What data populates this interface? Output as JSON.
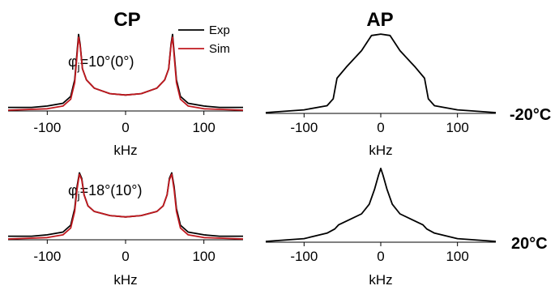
{
  "column_titles": [
    "CP",
    "AP"
  ],
  "row_labels": [
    "-20°C",
    "20°C"
  ],
  "legend": [
    {
      "label": "Exp",
      "color": "#000000"
    },
    {
      "label": "Sim",
      "color": "#c0191f"
    }
  ],
  "annotations": [
    {
      "prefix": "φ",
      "sub": "j",
      "text": "=10°(0°)"
    },
    {
      "prefix": "φ",
      "sub": "j",
      "text": "=18°(10°)"
    }
  ],
  "chart_data": [
    {
      "type": "line",
      "panel": "CP, -20°C",
      "xlabel": "kHz",
      "xlim": [
        -150,
        150
      ],
      "xticks": [
        "-100",
        "0",
        "100"
      ],
      "series": [
        {
          "name": "Exp",
          "color": "#000000",
          "points": [
            [
              -150,
              0.02
            ],
            [
              -120,
              0.02
            ],
            [
              -100,
              0.03
            ],
            [
              -80,
              0.05
            ],
            [
              -70,
              0.1
            ],
            [
              -65,
              0.22
            ],
            [
              -62,
              0.42
            ],
            [
              -60,
              0.55
            ],
            [
              -58,
              0.48
            ],
            [
              -55,
              0.3
            ],
            [
              -50,
              0.22
            ],
            [
              -40,
              0.16
            ],
            [
              -20,
              0.12
            ],
            [
              0,
              0.11
            ],
            [
              20,
              0.12
            ],
            [
              40,
              0.16
            ],
            [
              50,
              0.22
            ],
            [
              55,
              0.3
            ],
            [
              58,
              0.48
            ],
            [
              60,
              0.55
            ],
            [
              62,
              0.42
            ],
            [
              65,
              0.22
            ],
            [
              70,
              0.1
            ],
            [
              80,
              0.05
            ],
            [
              100,
              0.03
            ],
            [
              120,
              0.02
            ],
            [
              150,
              0.02
            ]
          ]
        },
        {
          "name": "Sim",
          "color": "#c0191f",
          "points": [
            [
              -150,
              0.0
            ],
            [
              -100,
              0.01
            ],
            [
              -80,
              0.03
            ],
            [
              -70,
              0.08
            ],
            [
              -65,
              0.2
            ],
            [
              -62,
              0.4
            ],
            [
              -60,
              0.53
            ],
            [
              -58,
              0.47
            ],
            [
              -55,
              0.3
            ],
            [
              -50,
              0.22
            ],
            [
              -40,
              0.16
            ],
            [
              -20,
              0.12
            ],
            [
              0,
              0.11
            ],
            [
              20,
              0.12
            ],
            [
              40,
              0.16
            ],
            [
              50,
              0.22
            ],
            [
              55,
              0.3
            ],
            [
              58,
              0.47
            ],
            [
              60,
              0.53
            ],
            [
              62,
              0.4
            ],
            [
              65,
              0.2
            ],
            [
              70,
              0.08
            ],
            [
              80,
              0.03
            ],
            [
              100,
              0.01
            ],
            [
              150,
              0.0
            ]
          ]
        }
      ]
    },
    {
      "type": "line",
      "panel": "AP, -20°C",
      "xlabel": "kHz",
      "xlim": [
        -150,
        150
      ],
      "xticks": [
        "-100",
        "0",
        "100"
      ],
      "series": [
        {
          "name": "",
          "color": "#000000",
          "points": [
            [
              -150,
              0.0
            ],
            [
              -100,
              0.02
            ],
            [
              -70,
              0.05
            ],
            [
              -62,
              0.1
            ],
            [
              -57,
              0.25
            ],
            [
              -45,
              0.33
            ],
            [
              -25,
              0.45
            ],
            [
              -12,
              0.56
            ],
            [
              0,
              0.57
            ],
            [
              12,
              0.56
            ],
            [
              25,
              0.45
            ],
            [
              45,
              0.33
            ],
            [
              57,
              0.25
            ],
            [
              62,
              0.1
            ],
            [
              70,
              0.05
            ],
            [
              100,
              0.02
            ],
            [
              150,
              0.0
            ]
          ]
        }
      ]
    },
    {
      "type": "line",
      "panel": "CP, 20°C",
      "xlabel": "kHz",
      "xlim": [
        -150,
        150
      ],
      "xticks": [
        "-100",
        "0",
        "100"
      ],
      "series": [
        {
          "name": "Exp",
          "color": "#000000",
          "points": [
            [
              -150,
              0.02
            ],
            [
              -120,
              0.02
            ],
            [
              -100,
              0.03
            ],
            [
              -80,
              0.05
            ],
            [
              -70,
              0.1
            ],
            [
              -65,
              0.22
            ],
            [
              -62,
              0.38
            ],
            [
              -59,
              0.48
            ],
            [
              -56,
              0.44
            ],
            [
              -53,
              0.32
            ],
            [
              -48,
              0.24
            ],
            [
              -40,
              0.2
            ],
            [
              -20,
              0.17
            ],
            [
              0,
              0.16
            ],
            [
              20,
              0.17
            ],
            [
              40,
              0.2
            ],
            [
              48,
              0.24
            ],
            [
              53,
              0.32
            ],
            [
              56,
              0.44
            ],
            [
              59,
              0.48
            ],
            [
              62,
              0.38
            ],
            [
              65,
              0.22
            ],
            [
              70,
              0.1
            ],
            [
              80,
              0.05
            ],
            [
              100,
              0.03
            ],
            [
              120,
              0.02
            ],
            [
              150,
              0.02
            ]
          ]
        },
        {
          "name": "Sim",
          "color": "#c0191f",
          "points": [
            [
              -150,
              0.0
            ],
            [
              -100,
              0.01
            ],
            [
              -80,
              0.03
            ],
            [
              -70,
              0.08
            ],
            [
              -65,
              0.2
            ],
            [
              -62,
              0.36
            ],
            [
              -59,
              0.47
            ],
            [
              -56,
              0.43
            ],
            [
              -53,
              0.32
            ],
            [
              -48,
              0.24
            ],
            [
              -40,
              0.2
            ],
            [
              -20,
              0.17
            ],
            [
              0,
              0.16
            ],
            [
              20,
              0.17
            ],
            [
              40,
              0.2
            ],
            [
              48,
              0.24
            ],
            [
              53,
              0.32
            ],
            [
              56,
              0.43
            ],
            [
              59,
              0.47
            ],
            [
              62,
              0.36
            ],
            [
              65,
              0.2
            ],
            [
              70,
              0.08
            ],
            [
              80,
              0.03
            ],
            [
              100,
              0.01
            ],
            [
              150,
              0.0
            ]
          ]
        }
      ]
    },
    {
      "type": "line",
      "panel": "AP, 20°C",
      "xlabel": "kHz",
      "xlim": [
        -150,
        150
      ],
      "xticks": [
        "-100",
        "0",
        "100"
      ],
      "series": [
        {
          "name": "",
          "color": "#000000",
          "points": [
            [
              -150,
              0.0
            ],
            [
              -100,
              0.02
            ],
            [
              -70,
              0.06
            ],
            [
              -60,
              0.09
            ],
            [
              -55,
              0.12
            ],
            [
              -40,
              0.16
            ],
            [
              -25,
              0.2
            ],
            [
              -15,
              0.27
            ],
            [
              -8,
              0.38
            ],
            [
              -3,
              0.48
            ],
            [
              0,
              0.53
            ],
            [
              3,
              0.48
            ],
            [
              8,
              0.38
            ],
            [
              15,
              0.27
            ],
            [
              25,
              0.2
            ],
            [
              40,
              0.16
            ],
            [
              55,
              0.12
            ],
            [
              60,
              0.09
            ],
            [
              70,
              0.06
            ],
            [
              100,
              0.02
            ],
            [
              150,
              0.0
            ]
          ]
        }
      ]
    }
  ]
}
